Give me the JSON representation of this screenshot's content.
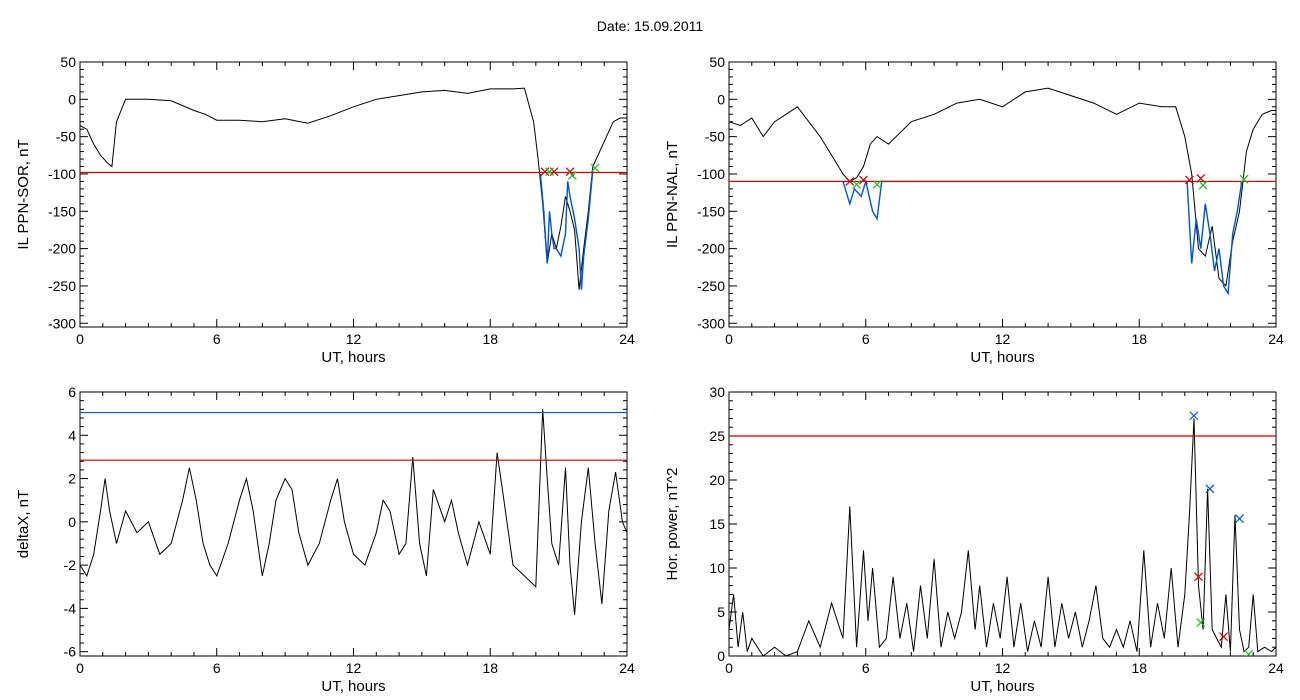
{
  "figure_title": "Date:  15.09.2011",
  "chart_data": [
    {
      "id": "p1",
      "type": "line",
      "xlabel": "UT, hours",
      "ylabel": "IL PPN-SOR, nT",
      "xlim": [
        0,
        24
      ],
      "ylim": [
        -305,
        50
      ],
      "xticks": [
        0,
        6,
        12,
        18,
        24
      ],
      "yticks": [
        50,
        0,
        -50,
        -100,
        -150,
        -200,
        -250,
        -300
      ],
      "series": [
        {
          "kind": "line",
          "color": "#000000",
          "x": [
            0,
            0.3,
            0.6,
            0.9,
            1.2,
            1.4,
            1.6,
            2,
            3,
            4,
            5,
            5.5,
            6,
            7,
            8,
            9,
            10,
            11,
            12,
            13,
            14,
            15,
            16,
            17,
            18,
            19,
            19.5,
            19.9,
            20.1,
            20.3,
            20.5,
            20.7,
            20.9,
            21.1,
            21.3,
            21.5,
            21.7,
            21.9,
            22.1,
            22.3,
            22.5,
            22.8,
            23.1,
            23.4,
            23.7,
            24
          ],
          "y": [
            -35,
            -40,
            -60,
            -75,
            -85,
            -90,
            -30,
            0,
            0,
            -2,
            -15,
            -20,
            -28,
            -28,
            -30,
            -26,
            -32,
            -22,
            -10,
            0,
            5,
            10,
            12,
            8,
            14,
            14,
            15,
            -30,
            -80,
            -140,
            -220,
            -180,
            -200,
            -170,
            -130,
            -150,
            -175,
            -255,
            -200,
            -150,
            -90,
            -70,
            -50,
            -30,
            -25,
            -25
          ]
        },
        {
          "kind": "line",
          "color": "#0055cc",
          "x": [
            20.2,
            20.35,
            20.5,
            20.6,
            20.7,
            20.8,
            20.9,
            21.1,
            21.3,
            21.4,
            21.5,
            21.7,
            21.9,
            22.0,
            22.1,
            22.3,
            22.5
          ],
          "y": [
            -100,
            -150,
            -220,
            -150,
            -180,
            -200,
            -200,
            -210,
            -180,
            -110,
            -130,
            -160,
            -200,
            -255,
            -210,
            -160,
            -95
          ]
        },
        {
          "kind": "hline",
          "color": "#cc0000",
          "y": -98
        },
        {
          "kind": "markers",
          "color": "#cc0000",
          "x": [
            20.4,
            20.8,
            21.5
          ],
          "y": [
            -97,
            -97,
            -97
          ]
        },
        {
          "kind": "markers",
          "color": "#22bb22",
          "x": [
            20.6,
            21.6,
            22.6
          ],
          "y": [
            -97,
            -102,
            -92
          ]
        }
      ]
    },
    {
      "id": "p2",
      "type": "line",
      "xlabel": "UT, hours",
      "ylabel": "IL PPN-NAL, nT",
      "xlim": [
        0,
        24
      ],
      "ylim": [
        -305,
        50
      ],
      "xticks": [
        0,
        6,
        12,
        18,
        24
      ],
      "yticks": [
        50,
        0,
        -50,
        -100,
        -150,
        -200,
        -250,
        -300
      ],
      "series": [
        {
          "kind": "line",
          "color": "#000000",
          "x": [
            0,
            0.5,
            1,
            1.5,
            2,
            2.5,
            3,
            3.5,
            4,
            4.5,
            5,
            5.3,
            5.6,
            5.9,
            6.2,
            6.5,
            7,
            8,
            9,
            10,
            11,
            12,
            13,
            14,
            15,
            16,
            17,
            18,
            19,
            19.6,
            20,
            20.3,
            20.6,
            20.9,
            21.2,
            21.5,
            21.8,
            22.1,
            22.4,
            22.7,
            23,
            23.4,
            23.8,
            24
          ],
          "y": [
            -30,
            -35,
            -25,
            -50,
            -30,
            -20,
            -10,
            -30,
            -50,
            -75,
            -100,
            -110,
            -105,
            -90,
            -60,
            -50,
            -60,
            -30,
            -20,
            -5,
            0,
            -10,
            10,
            15,
            5,
            -5,
            -20,
            -5,
            -10,
            -10,
            -50,
            -100,
            -200,
            -210,
            -170,
            -240,
            -250,
            -190,
            -150,
            -70,
            -40,
            -20,
            -15,
            -15
          ]
        },
        {
          "kind": "line",
          "color": "#0055cc",
          "x": [
            5.0,
            5.3,
            5.5,
            5.8,
            6.0,
            6.3,
            6.5,
            6.7,
            20.1,
            20.3,
            20.5,
            20.7,
            20.9,
            21.1,
            21.3,
            21.5,
            21.7,
            21.9,
            22.1,
            22.3,
            22.5
          ],
          "y": [
            -110,
            -140,
            -120,
            -130,
            -110,
            -150,
            -160,
            -110,
            -110,
            -220,
            -160,
            -200,
            -140,
            -180,
            -230,
            -200,
            -250,
            -260,
            -180,
            -150,
            -110
          ]
        },
        {
          "kind": "hline",
          "color": "#cc0000",
          "y": -110
        },
        {
          "kind": "markers",
          "color": "#cc0000",
          "x": [
            5.3,
            5.9,
            20.2,
            20.7
          ],
          "y": [
            -110,
            -108,
            -108,
            -106
          ]
        },
        {
          "kind": "markers",
          "color": "#22bb22",
          "x": [
            5.6,
            6.5,
            20.8,
            22.6
          ],
          "y": [
            -114,
            -114,
            -115,
            -107
          ]
        }
      ]
    },
    {
      "id": "p3",
      "type": "line",
      "xlabel": "UT, hours",
      "ylabel": "deltaX, nT",
      "xlim": [
        0,
        24
      ],
      "ylim": [
        -6.2,
        6
      ],
      "xticks": [
        0,
        6,
        12,
        18,
        24
      ],
      "yticks": [
        6,
        4,
        2,
        0,
        -2,
        -4,
        -6
      ],
      "series": [
        {
          "kind": "line",
          "color": "#000000",
          "x": [
            0,
            0.3,
            0.6,
            0.9,
            1.1,
            1.3,
            1.6,
            2,
            2.5,
            3,
            3.5,
            4,
            4.5,
            4.8,
            5.1,
            5.4,
            5.7,
            6,
            6.5,
            7,
            7.3,
            7.6,
            8,
            8.3,
            8.6,
            9,
            9.3,
            9.6,
            10,
            10.5,
            11,
            11.3,
            11.6,
            12,
            12.5,
            13,
            13.3,
            13.6,
            14,
            14.3,
            14.6,
            14.9,
            15.2,
            15.5,
            16,
            16.3,
            16.6,
            17,
            17.5,
            18,
            18.3,
            18.6,
            19,
            19.5,
            20,
            20.3,
            20.5,
            20.7,
            21,
            21.3,
            21.5,
            21.7,
            22,
            22.3,
            22.6,
            22.9,
            23.2,
            23.5,
            23.8,
            24
          ],
          "y": [
            -2,
            -2.5,
            -1.5,
            0.5,
            2,
            0.5,
            -1,
            0.5,
            -0.5,
            0,
            -1.5,
            -1,
            1,
            2.5,
            1,
            -1,
            -2,
            -2.5,
            -1,
            1,
            2,
            0.5,
            -2.5,
            -1,
            1,
            2,
            1.5,
            -0.5,
            -2,
            -1,
            1,
            2,
            0,
            -1.5,
            -2,
            -0.5,
            1,
            0.5,
            -1.5,
            -1,
            3,
            -1,
            -2.5,
            1.5,
            0,
            1,
            -0.5,
            -2,
            0,
            -1.5,
            3.2,
            1,
            -2,
            -2.5,
            -3,
            5.2,
            2,
            -1,
            -2,
            2.5,
            -2,
            -4.3,
            0,
            2.5,
            -1,
            -3.8,
            0.5,
            2.3,
            0,
            -0.5
          ]
        },
        {
          "kind": "hline",
          "color": "#0055cc",
          "y": 5.05
        },
        {
          "kind": "hline",
          "color": "#cc0000",
          "y": 2.85
        }
      ]
    },
    {
      "id": "p4",
      "type": "line",
      "xlabel": "UT, hours",
      "ylabel": "Hor. power, nT^2",
      "xlim": [
        0,
        24
      ],
      "ylim": [
        0,
        30
      ],
      "xticks": [
        0,
        6,
        12,
        18,
        24
      ],
      "yticks": [
        30,
        25,
        20,
        15,
        10,
        5,
        0
      ],
      "series": [
        {
          "kind": "line",
          "color": "#000000",
          "x": [
            0,
            0.2,
            0.4,
            0.6,
            0.8,
            1,
            1.5,
            2,
            2.5,
            3,
            3.5,
            4,
            4.5,
            5,
            5.3,
            5.6,
            5.9,
            6.1,
            6.3,
            6.6,
            6.9,
            7.2,
            7.5,
            7.8,
            8.1,
            8.4,
            8.7,
            9,
            9.3,
            9.6,
            9.9,
            10.2,
            10.5,
            10.8,
            11,
            11.3,
            11.6,
            11.9,
            12.2,
            12.5,
            12.8,
            13.1,
            13.4,
            13.7,
            14,
            14.3,
            14.6,
            14.9,
            15.2,
            15.5,
            15.8,
            16.1,
            16.4,
            16.7,
            17,
            17.3,
            17.6,
            17.9,
            18.2,
            18.5,
            18.8,
            19.1,
            19.4,
            19.7,
            20,
            20.2,
            20.4,
            20.6,
            20.8,
            21,
            21.2,
            21.4,
            21.6,
            21.8,
            22,
            22.2,
            22.4,
            22.6,
            22.8,
            23,
            23.2,
            23.5,
            23.8,
            24
          ],
          "y": [
            3,
            7,
            1,
            5,
            0.5,
            2,
            0,
            1,
            0,
            0.5,
            4,
            1,
            6,
            2,
            17,
            1,
            12,
            4,
            10,
            1,
            2,
            9,
            2,
            6,
            0.5,
            8,
            2,
            11,
            1,
            5,
            2,
            5,
            12,
            3,
            8,
            1,
            6,
            2,
            9,
            1,
            6,
            0.5,
            4,
            1,
            9,
            1,
            6,
            2,
            5,
            1,
            4,
            8,
            2,
            1,
            3,
            1,
            4,
            0.5,
            12,
            1,
            6,
            2,
            10,
            1,
            7,
            16,
            27,
            8,
            3,
            19,
            3,
            2,
            1,
            7,
            0.5,
            16,
            3,
            0.5,
            1,
            7,
            0.5,
            1,
            0.5,
            1
          ]
        },
        {
          "kind": "hline",
          "color": "#cc0000",
          "y": 25
        },
        {
          "kind": "markers",
          "color": "#0055cc",
          "x": [
            20.4,
            21.1,
            22.4
          ],
          "y": [
            27.3,
            19,
            15.6
          ]
        },
        {
          "kind": "markers",
          "color": "#cc0000",
          "x": [
            20.6,
            21.7
          ],
          "y": [
            9,
            2.2
          ]
        },
        {
          "kind": "markers",
          "color": "#22bb22",
          "x": [
            20.7,
            22.8
          ],
          "y": [
            3.8,
            0.2
          ]
        }
      ]
    }
  ]
}
